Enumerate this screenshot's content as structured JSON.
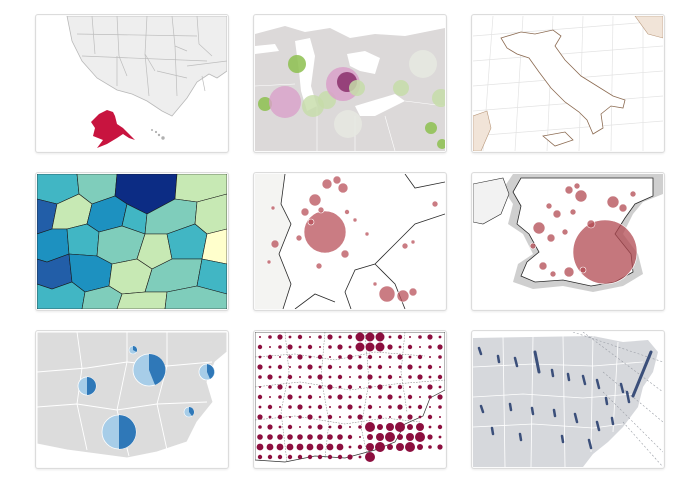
{
  "gallery": {
    "tiles": [
      {
        "kind": "us-states-inset-alaska",
        "accent": "#c8143f"
      },
      {
        "kind": "great-lakes-bubbles",
        "palette": [
          "#8dbf4f",
          "#d9a0c9",
          "#c5dca8",
          "#e6e8e0",
          "#8a2f6b"
        ]
      },
      {
        "kind": "italy-graticule-outline",
        "accent": "#b8977a"
      },
      {
        "kind": "choropleth-ylgnbu",
        "palette": [
          "#ffffcc",
          "#c7e9b4",
          "#7fcdbb",
          "#41b6c4",
          "#1d91c0",
          "#225ea8",
          "#0c2c84"
        ]
      },
      {
        "kind": "france-border-proportional-symbols",
        "accent": "#b8505a"
      },
      {
        "kind": "great-britain-proportional-symbols",
        "accent": "#b24a52"
      },
      {
        "kind": "spain-pie-symbols",
        "palette": [
          "#2f78b8",
          "#a7cde8"
        ]
      },
      {
        "kind": "dot-density-grid",
        "accent": "#8c0f3f"
      },
      {
        "kind": "us-spike-map",
        "accent": "#3b4f7a"
      }
    ]
  }
}
